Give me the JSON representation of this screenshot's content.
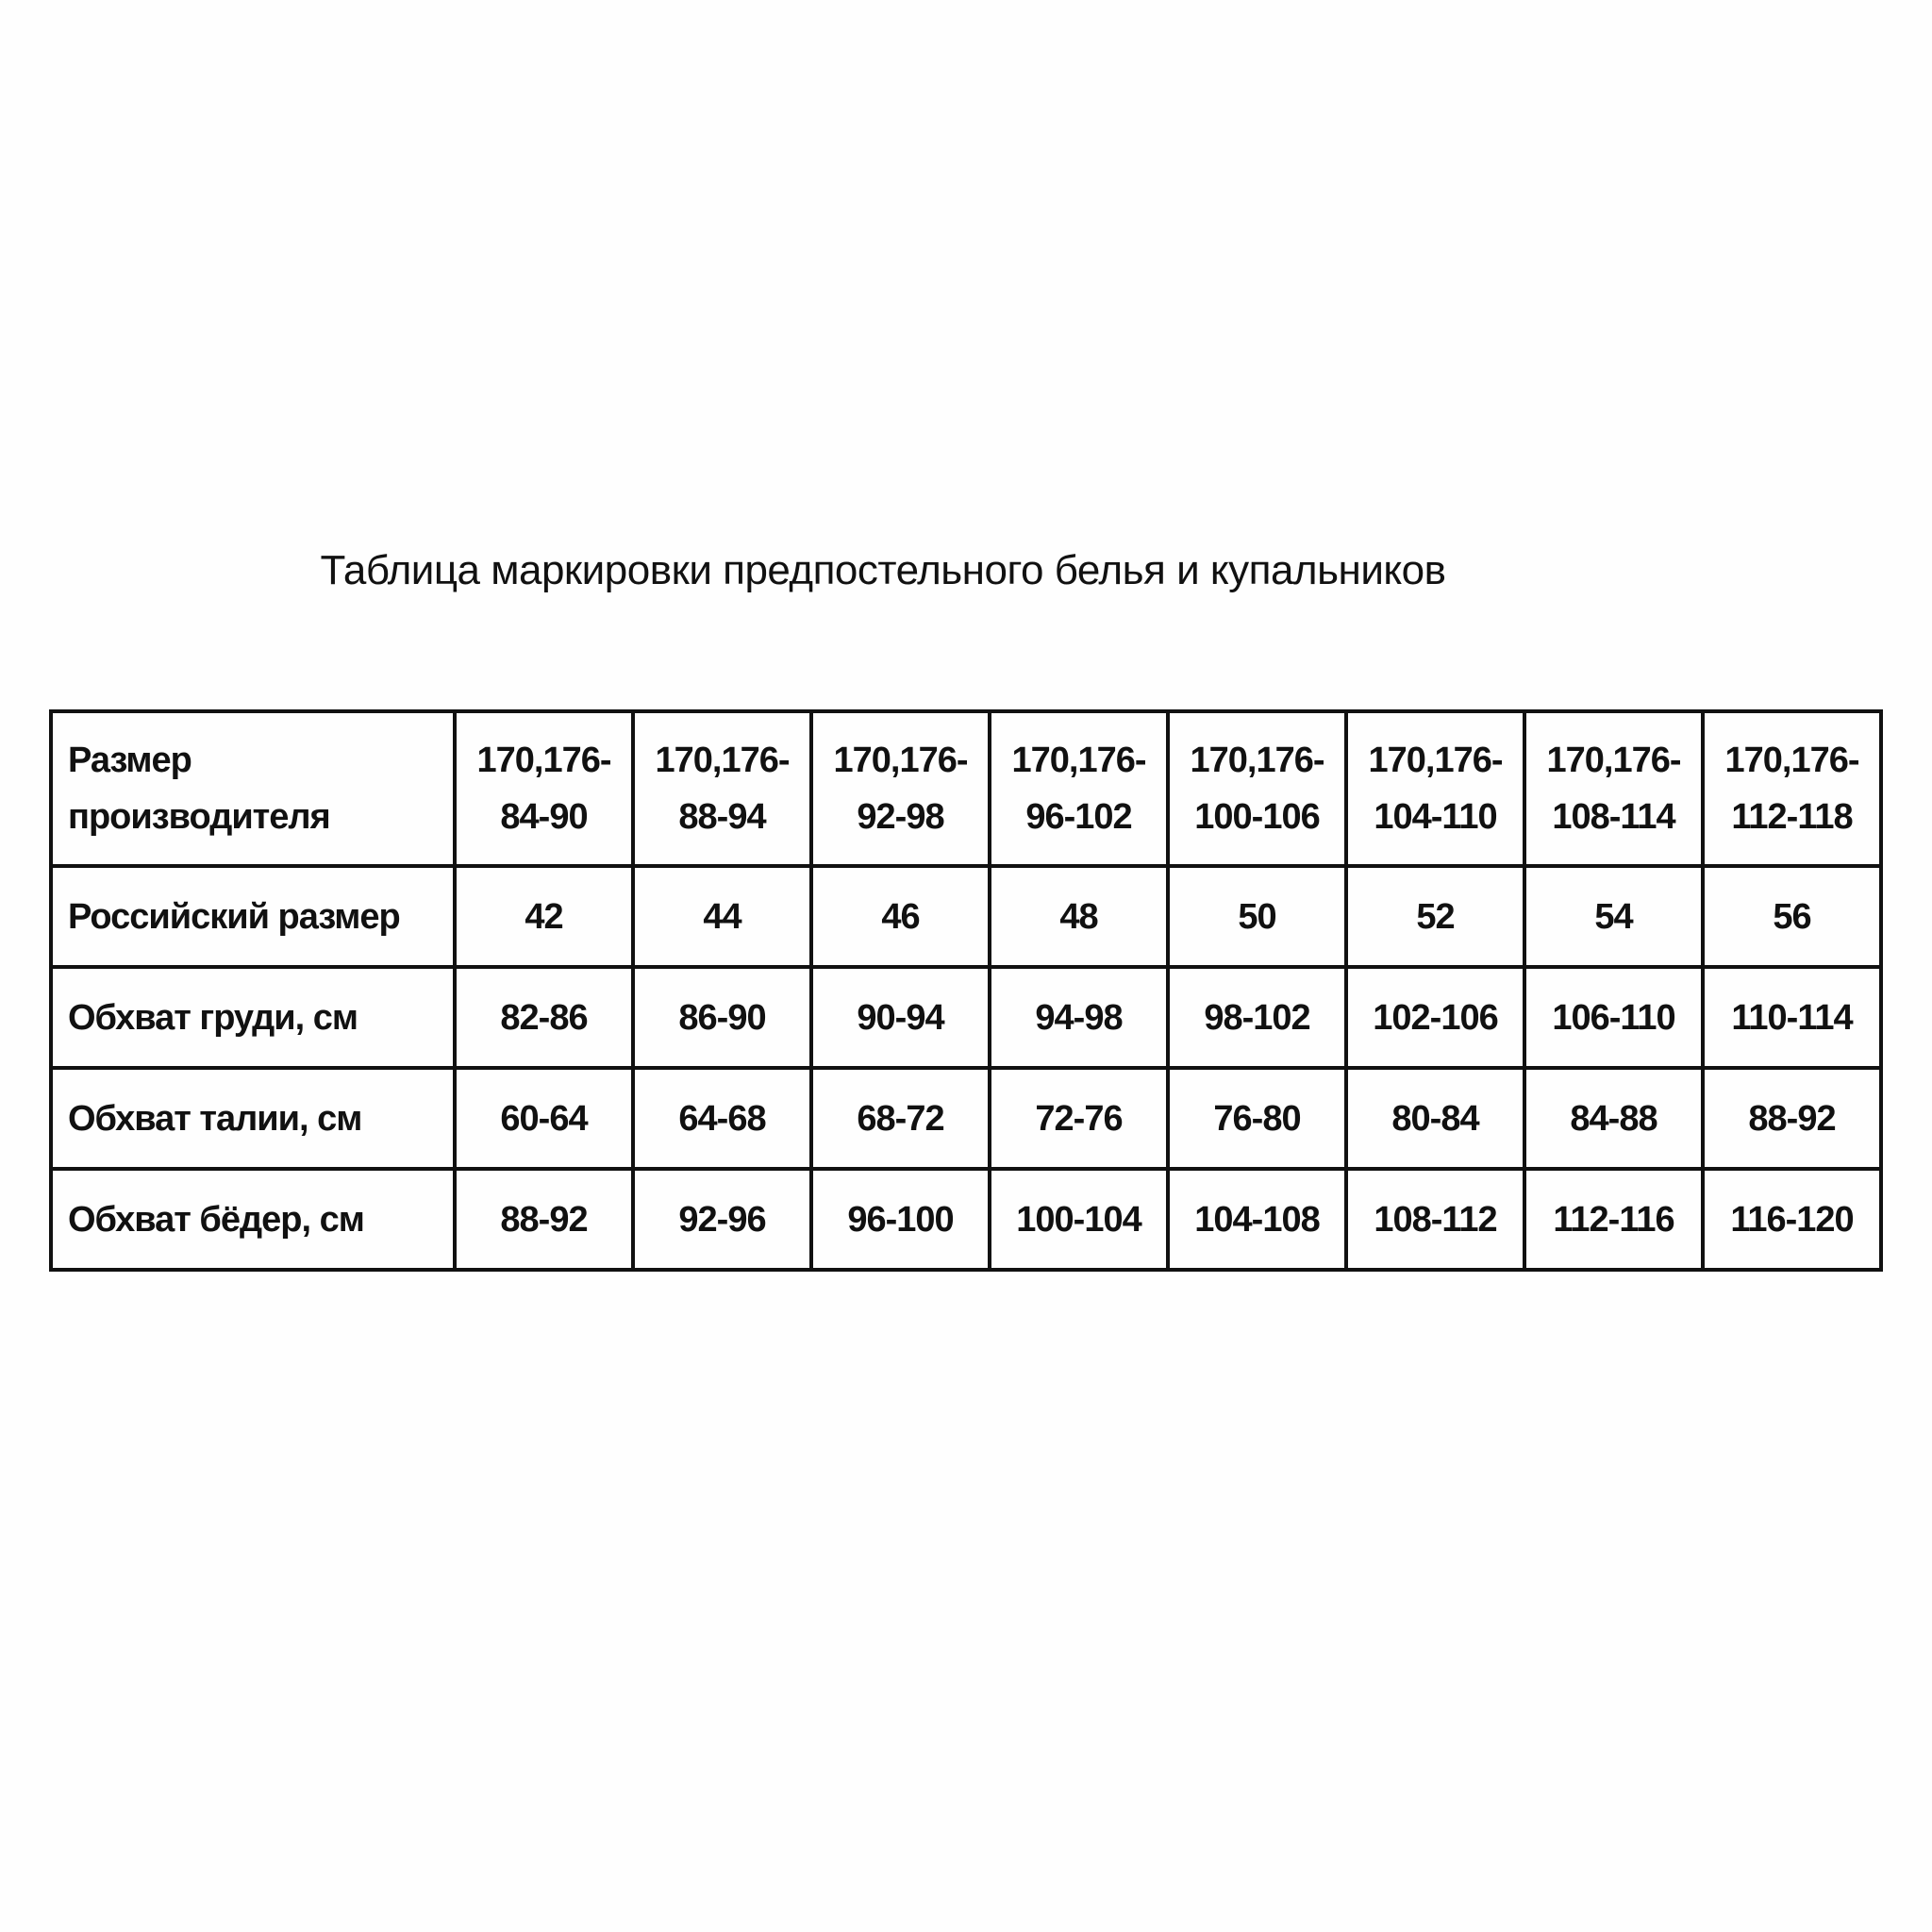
{
  "title": "Таблица маркировки предпостельного белья и купальников",
  "table": {
    "rows": [
      {
        "label": [
          "Размер",
          "производителя"
        ],
        "values": [
          [
            "170,176-",
            "84-90"
          ],
          [
            "170,176-",
            "88-94"
          ],
          [
            "170,176-",
            "92-98"
          ],
          [
            "170,176-",
            "96-102"
          ],
          [
            "170,176-",
            "100-106"
          ],
          [
            "170,176-",
            "104-110"
          ],
          [
            "170,176-",
            "108-114"
          ],
          [
            "170,176-",
            "112-118"
          ]
        ]
      },
      {
        "label": "Российский размер",
        "values": [
          "42",
          "44",
          "46",
          "48",
          "50",
          "52",
          "54",
          "56"
        ]
      },
      {
        "label": "Обхват груди, см",
        "values": [
          "82-86",
          "86-90",
          "90-94",
          "94-98",
          "98-102",
          "102-106",
          "106-110",
          "110-114"
        ]
      },
      {
        "label": "Обхват талии, см",
        "values": [
          "60-64",
          "64-68",
          "68-72",
          "72-76",
          "76-80",
          "80-84",
          "84-88",
          "88-92"
        ]
      },
      {
        "label": "Обхват бёдер, см",
        "values": [
          "88-92",
          "92-96",
          "96-100",
          "100-104",
          "104-108",
          "108-112",
          "112-116",
          "116-120"
        ]
      }
    ]
  }
}
